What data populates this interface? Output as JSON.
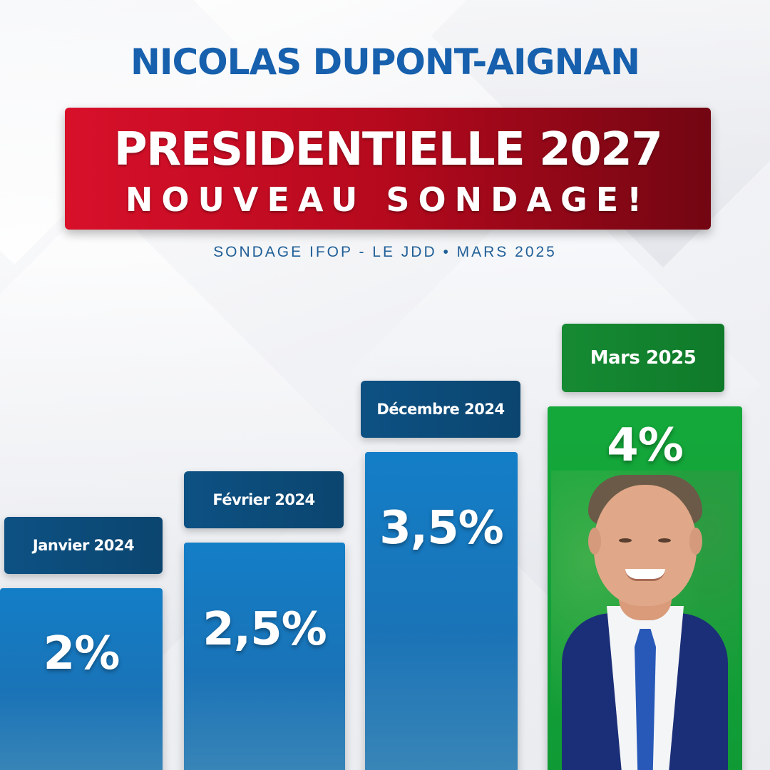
{
  "header": {
    "name": "NICOLAS DUPONT-AIGNAN",
    "title_line1": "PRESIDENTIELLE 2027",
    "title_line2": "NOUVEAU SONDAGE!",
    "source": "SONDAGE IFOP - LE JDD • MARS 2025"
  },
  "colors": {
    "name_blue": "#1760ad",
    "banner_red": "#c40b22",
    "bar_blue": "#1a77bd",
    "label_blue": "#0c4b7a",
    "highlight_green": "#12a137"
  },
  "chart_data": {
    "type": "bar",
    "title": "PRESIDENTIELLE 2027",
    "categories": [
      "Janvier 2024",
      "Février 2024",
      "Décembre 2024",
      "Mars 2025"
    ],
    "values": [
      2,
      2.5,
      3.5,
      4
    ],
    "value_labels": [
      "2%",
      "2,5%",
      "3,5%",
      "4%"
    ],
    "highlight_index": 3,
    "portrait_in_highlighted_bar": "candidate-photo",
    "xlabel": "",
    "ylabel": "",
    "grid": false,
    "legend": "none"
  }
}
